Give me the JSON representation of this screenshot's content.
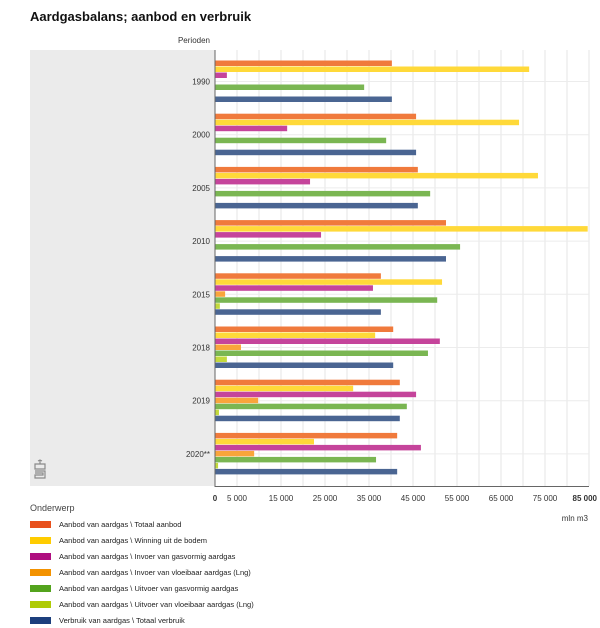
{
  "page": {
    "title": "Aardgasbalans; aanbod en verbruik",
    "category_header": "Perioden",
    "unit_label": "mln m3",
    "legend_title": "Onderwerp",
    "logo_icon": "cbs-logo-icon"
  },
  "chart_data": {
    "type": "bar",
    "orientation": "horizontal",
    "title": "Aardgasbalans; aanbod en verbruik",
    "xlabel": "mln m3",
    "ylabel": "Perioden",
    "xlim": [
      0,
      85000
    ],
    "x_ticks": [
      0,
      5000,
      15000,
      25000,
      35000,
      45000,
      55000,
      65000,
      75000,
      85000
    ],
    "x_tick_labels": [
      "0",
      "5 000",
      "15 000",
      "25 000",
      "35 000",
      "45 000",
      "55 000",
      "65 000",
      "75 000",
      "85 000"
    ],
    "grid": true,
    "legend_position": "bottom-left",
    "legend_title": "Onderwerp",
    "categories": [
      "1990",
      "2000",
      "2005",
      "2010",
      "2015",
      "2018",
      "2019",
      "2020**"
    ],
    "series": [
      {
        "name": "Aanbod van aardgas \\ Totaal aanbod",
        "color": "#f07a3c",
        "legend_color": "#e8501c",
        "values": [
          40200,
          45700,
          46100,
          52500,
          37700,
          40500,
          42000,
          41400
        ]
      },
      {
        "name": "Aanbod van aardgas \\ Winning uit de bodem",
        "color": "#ffd939",
        "legend_color": "#ffcc00",
        "values": [
          71400,
          69100,
          73400,
          84700,
          51600,
          36400,
          31400,
          22500
        ]
      },
      {
        "name": "Aanbod van aardgas \\ Invoer van gasvormig aardgas",
        "color": "#c5449b",
        "legend_color": "#af0e80",
        "values": [
          2700,
          16400,
          21600,
          24100,
          35900,
          51100,
          45700,
          46800
        ]
      },
      {
        "name": "Aanbod van aardgas \\ Invoer van vloeibaar aardgas (Lng)",
        "color": "#f9a53b",
        "legend_color": "#f39200",
        "values": [
          0,
          0,
          0,
          0,
          2300,
          5900,
          9800,
          8900
        ]
      },
      {
        "name": "Aanbod van aardgas \\ Uitvoer van gasvormig aardgas",
        "color": "#7ab652",
        "legend_color": "#53a31d",
        "values": [
          33900,
          38900,
          48900,
          55700,
          50500,
          48400,
          43600,
          36600
        ]
      },
      {
        "name": "Aanbod van aardgas \\ Uitvoer van vloeibaar aardgas (Lng)",
        "color": "#c3d93c",
        "legend_color": "#afcb05",
        "values": [
          0,
          0,
          0,
          0,
          1100,
          2700,
          900,
          700
        ]
      },
      {
        "name": "Verbruik van aardgas \\ Totaal verbruik",
        "color": "#4a6592",
        "legend_color": "#1c3f7d",
        "values": [
          40200,
          45700,
          46100,
          52500,
          37700,
          40500,
          42000,
          41400
        ]
      }
    ]
  }
}
